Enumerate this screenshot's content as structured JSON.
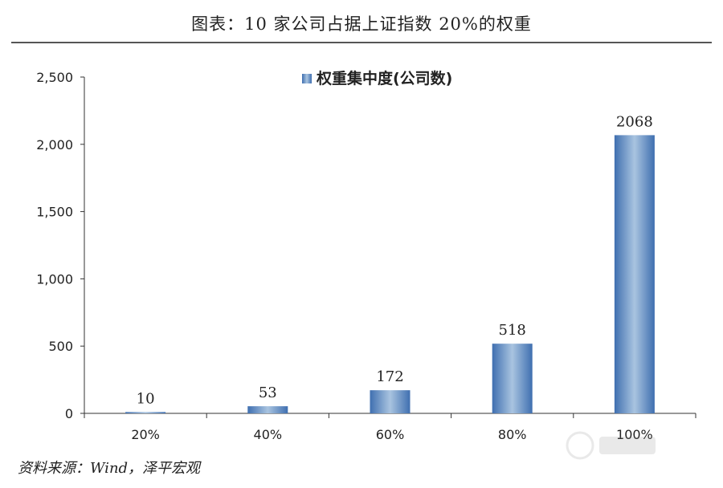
{
  "header": {
    "title": "图表：10 家公司占据上证指数 20%的权重"
  },
  "footer": {
    "source": "资料来源：Wind，泽平宏观"
  },
  "chart_data": {
    "type": "bar",
    "categories": [
      "20%",
      "40%",
      "60%",
      "80%",
      "100%"
    ],
    "series": [
      {
        "name": "权重集中度(公司数)",
        "values": [
          10,
          53,
          172,
          518,
          2068
        ]
      }
    ],
    "data_labels": [
      "10",
      "53",
      "172",
      "518",
      "2068"
    ],
    "ylim": [
      0,
      2500
    ],
    "yticks": [
      0,
      500,
      1000,
      1500,
      2000,
      2500
    ],
    "ytick_labels": [
      "0",
      "500",
      "1,000",
      "1,500",
      "2,000",
      "2,500"
    ],
    "grid": false,
    "legend": "top-center",
    "colors": {
      "bar_edge": "#3f6fb0",
      "bar_center": "#a9c4e0",
      "axis": "#333333",
      "label": "#222222"
    }
  }
}
